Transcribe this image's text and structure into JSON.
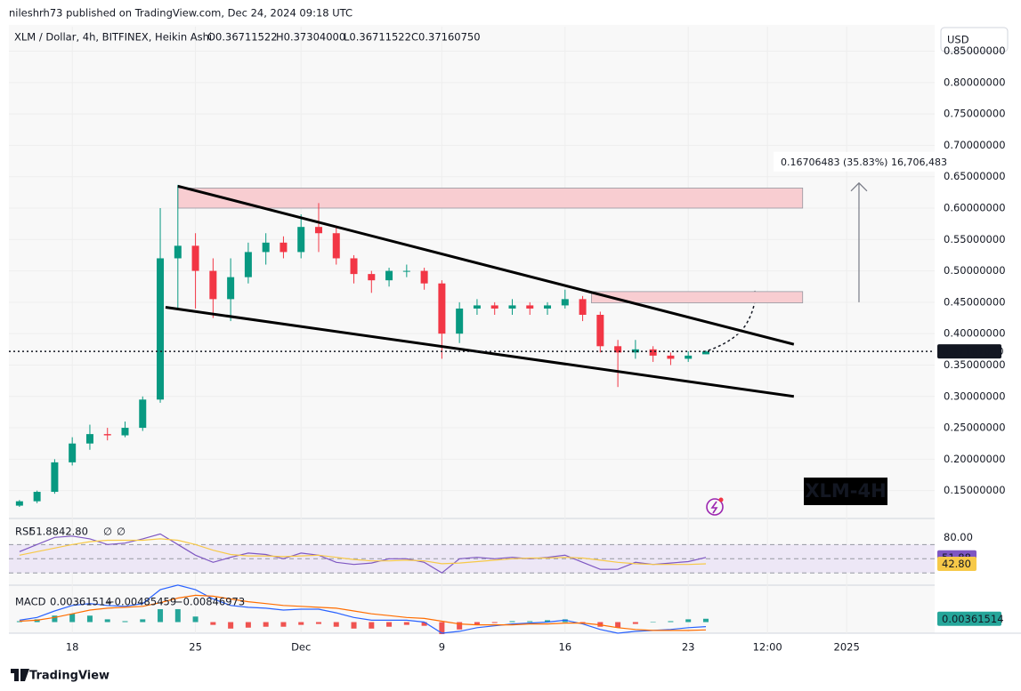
{
  "header": {
    "publisher": "nileshrh73 published on TradingView.com, Dec 24, 2024 09:18 UTC",
    "currency": "USD",
    "brand": "TradingView"
  },
  "chart_data": [
    {
      "type": "candlestick",
      "title": "XLM / Dollar, 4h, BITFINEX, Heikin Ashi",
      "ohlc_legend": [
        "O0.36711522",
        "H0.37304000",
        "L0.36711522",
        "C0.37160750"
      ],
      "x": [
        15,
        16,
        17,
        18,
        19,
        20,
        21,
        22,
        23,
        24,
        25,
        26,
        27,
        28,
        29,
        30,
        31,
        32,
        33,
        34,
        35,
        36,
        37,
        38,
        39,
        40,
        41,
        42,
        43,
        44,
        45,
        46,
        47,
        48,
        49,
        50,
        51,
        52,
        53,
        54
      ],
      "open": [
        0.126,
        0.133,
        0.148,
        0.195,
        0.225,
        0.24,
        0.238,
        0.25,
        0.295,
        0.52,
        0.54,
        0.5,
        0.455,
        0.49,
        0.53,
        0.545,
        0.53,
        0.57,
        0.56,
        0.52,
        0.495,
        0.485,
        0.5,
        0.5,
        0.48,
        0.4,
        0.44,
        0.445,
        0.44,
        0.445,
        0.44,
        0.445,
        0.455,
        0.43,
        0.38,
        0.37,
        0.375,
        0.365,
        0.36,
        0.36711522
      ],
      "high": [
        0.135,
        0.15,
        0.2,
        0.235,
        0.255,
        0.25,
        0.26,
        0.3,
        0.6,
        0.637,
        0.56,
        0.52,
        0.52,
        0.545,
        0.56,
        0.555,
        0.59,
        0.608,
        0.57,
        0.525,
        0.5,
        0.505,
        0.51,
        0.505,
        0.485,
        0.45,
        0.455,
        0.45,
        0.455,
        0.45,
        0.45,
        0.47,
        0.46,
        0.435,
        0.39,
        0.39,
        0.38,
        0.37,
        0.372,
        0.37304
      ],
      "low": [
        0.124,
        0.13,
        0.145,
        0.19,
        0.215,
        0.23,
        0.235,
        0.245,
        0.29,
        0.44,
        0.44,
        0.425,
        0.42,
        0.48,
        0.51,
        0.52,
        0.52,
        0.53,
        0.51,
        0.48,
        0.465,
        0.475,
        0.49,
        0.47,
        0.36,
        0.385,
        0.43,
        0.43,
        0.43,
        0.43,
        0.43,
        0.44,
        0.42,
        0.37,
        0.315,
        0.36,
        0.355,
        0.35,
        0.355,
        0.36711522
      ],
      "close": [
        0.133,
        0.148,
        0.195,
        0.225,
        0.24,
        0.238,
        0.25,
        0.295,
        0.52,
        0.54,
        0.5,
        0.455,
        0.49,
        0.53,
        0.545,
        0.53,
        0.57,
        0.56,
        0.52,
        0.495,
        0.485,
        0.5,
        0.5,
        0.48,
        0.4,
        0.44,
        0.445,
        0.44,
        0.445,
        0.44,
        0.445,
        0.455,
        0.43,
        0.38,
        0.37,
        0.375,
        0.365,
        0.36,
        0.365,
        0.3716075
      ],
      "up_color": "#089981",
      "down_color": "#f23645",
      "xlim": [
        14.4,
        67
      ],
      "xticks": [
        18,
        25,
        {
          "value": 31,
          "label": "Dec"
        },
        {
          "value": 39,
          "label": "9"
        },
        {
          "value": 46,
          "label": "16"
        },
        {
          "value": 53,
          "label": "23"
        },
        {
          "value": 57.5,
          "label": "12:00"
        },
        {
          "value": 62,
          "label": "2025"
        }
      ],
      "ylim": [
        0.107,
        0.889
      ],
      "yticks": [
        {
          "value": 0.15,
          "label": "0.15000000"
        },
        {
          "value": 0.2,
          "label": "0.20000000"
        },
        {
          "value": 0.25,
          "label": "0.25000000"
        },
        {
          "value": 0.3,
          "label": "0.30000000"
        },
        {
          "value": 0.35,
          "label": "0.35000000"
        },
        {
          "value": 0.4,
          "label": "0.40000000"
        },
        {
          "value": 0.45,
          "label": "0.45000000"
        },
        {
          "value": 0.5,
          "label": "0.50000000"
        },
        {
          "value": 0.55,
          "label": "0.55000000"
        },
        {
          "value": 0.6,
          "label": "0.60000000"
        },
        {
          "value": 0.65,
          "label": "0.65000000"
        },
        {
          "value": 0.7,
          "label": "0.70000000"
        },
        {
          "value": 0.75,
          "label": "0.75000000"
        },
        {
          "value": 0.8,
          "label": "0.80000000"
        },
        {
          "value": 0.85,
          "label": "0.85000000"
        }
      ],
      "grid": true,
      "last_price": {
        "value": 0.37167,
        "label": "0.37167000"
      },
      "zones": [
        {
          "x": [
            24,
            59.5
          ],
          "y": [
            0.6,
            0.632
          ],
          "color": "#f8cdd1"
        },
        {
          "x": [
            47.5,
            59.5
          ],
          "y": [
            0.449,
            0.467
          ],
          "color": "#f8cdd1"
        }
      ],
      "trendlines": [
        {
          "x": [
            24,
            59
          ],
          "y": [
            0.635,
            0.383
          ]
        },
        {
          "x": [
            23.3,
            59
          ],
          "y": [
            0.442,
            0.3
          ]
        }
      ],
      "measure": {
        "x": 62.7,
        "y": [
          0.45,
          0.64
        ],
        "label": "0.16706483 (35.83%) 16,706,483"
      },
      "watermark": "XLM-4H"
    },
    {
      "type": "line",
      "title": "RSI",
      "legend": [
        "51.88",
        "42.80",
        "∅",
        "∅"
      ],
      "series": [
        {
          "color": "#7e57c2",
          "values": [
            60,
            70,
            80,
            82,
            78,
            70,
            72,
            78,
            85,
            70,
            55,
            45,
            52,
            58,
            56,
            50,
            58,
            55,
            45,
            42,
            44,
            50,
            50,
            45,
            30,
            50,
            52,
            50,
            52,
            50,
            52,
            55,
            45,
            35,
            35,
            45,
            42,
            44,
            46,
            51.88
          ]
        },
        {
          "color": "#f7c948",
          "values": [
            55,
            60,
            65,
            70,
            74,
            76,
            76,
            76,
            78,
            76,
            70,
            62,
            56,
            54,
            54,
            53,
            54,
            55,
            52,
            49,
            47,
            47,
            48,
            47,
            43,
            44,
            46,
            48,
            50,
            51,
            51,
            52,
            51,
            48,
            45,
            43,
            42,
            42,
            42,
            42.8
          ]
        }
      ],
      "ylim": [
        14,
        103
      ],
      "yticks": [
        {
          "value": 80,
          "label": "80.00"
        }
      ],
      "bands": [
        70,
        50,
        30
      ],
      "band_color": "#ede7f6"
    },
    {
      "type": "macd",
      "title": "MACD",
      "legend": [
        "0.00361514",
        "−0.00485459",
        "−0.00846973"
      ],
      "histogram": {
        "up_color": "#26a69a",
        "down_color": "#ef5350",
        "values": [
          0.001,
          0.003,
          0.007,
          0.009,
          0.007,
          0.003,
          0.001,
          0.003,
          0.014,
          0.014,
          0.006,
          -0.003,
          -0.007,
          -0.006,
          -0.005,
          -0.005,
          -0.003,
          -0.002,
          -0.005,
          -0.007,
          -0.007,
          -0.005,
          -0.003,
          -0.004,
          -0.013,
          -0.008,
          -0.003,
          -0.001,
          0.001,
          0.001,
          0.002,
          0.003,
          -0.001,
          -0.005,
          -0.006,
          -0.002,
          0,
          0.001,
          0.003,
          0.00361514
        ]
      },
      "series": [
        {
          "color": "#2962ff",
          "values": [
            0.002,
            0.005,
            0.012,
            0.018,
            0.02,
            0.018,
            0.017,
            0.02,
            0.035,
            0.04,
            0.035,
            0.025,
            0.018,
            0.016,
            0.015,
            0.013,
            0.014,
            0.014,
            0.01,
            0.005,
            0.002,
            0.002,
            0.002,
            0,
            -0.012,
            -0.01,
            -0.006,
            -0.004,
            -0.002,
            -0.001,
            0,
            0.002,
            -0.002,
            -0.008,
            -0.012,
            -0.01,
            -0.009,
            -0.008,
            -0.006,
            -0.00485459
          ]
        },
        {
          "color": "#ff6d00",
          "values": [
            0.001,
            0.002,
            0.005,
            0.009,
            0.013,
            0.015,
            0.016,
            0.017,
            0.021,
            0.026,
            0.029,
            0.028,
            0.025,
            0.022,
            0.02,
            0.018,
            0.017,
            0.016,
            0.015,
            0.012,
            0.009,
            0.007,
            0.005,
            0.004,
            0.001,
            -0.002,
            -0.003,
            -0.003,
            -0.003,
            -0.002,
            -0.002,
            -0.001,
            -0.001,
            -0.003,
            -0.006,
            -0.008,
            -0.009,
            -0.009,
            -0.009,
            -0.00846973
          ]
        }
      ],
      "ylim": [
        -0.012,
        0.038
      ]
    }
  ]
}
